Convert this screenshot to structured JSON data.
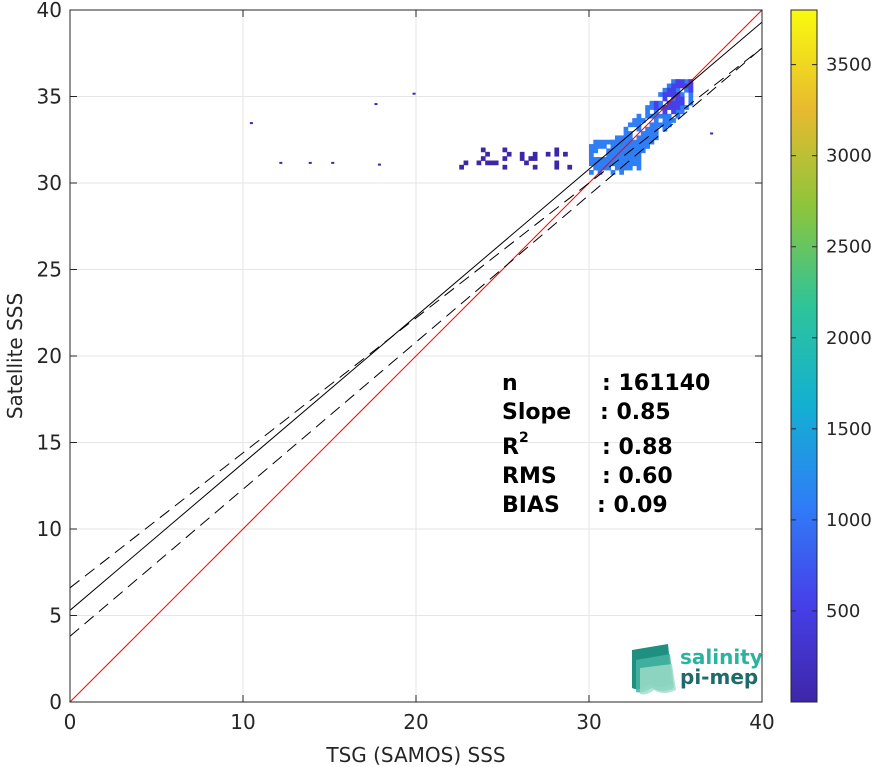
{
  "chart_data": {
    "type": "heatmap",
    "title": "",
    "xlabel": "TSG (SAMOS) SSS",
    "ylabel": "Satellite SSS",
    "xlim": [
      0,
      40
    ],
    "ylim": [
      0,
      40
    ],
    "xticks": [
      "0",
      "10",
      "20",
      "30",
      "40"
    ],
    "yticks": [
      "0",
      "5",
      "10",
      "15",
      "20",
      "25",
      "30",
      "35",
      "40"
    ],
    "grid": true,
    "colorbar": {
      "range": [
        0,
        3800
      ],
      "ticks": [
        "500",
        "1000",
        "1500",
        "2000",
        "2500",
        "3000",
        "3500"
      ],
      "colormap": "parula"
    },
    "lines": [
      {
        "name": "one-to-one",
        "slope": 1.0,
        "intercept": 0.0,
        "color": "#ff0000",
        "style": "solid"
      },
      {
        "name": "regression",
        "slope": 0.85,
        "intercept": 5.3,
        "color": "#000000",
        "style": "solid"
      },
      {
        "name": "regression-plus-std",
        "slope": 0.78,
        "intercept": 6.6,
        "color": "#000000",
        "style": "dashed"
      },
      {
        "name": "regression-minus-std",
        "slope": 0.85,
        "intercept": 3.8,
        "color": "#000000",
        "style": "dashed"
      }
    ],
    "density_clusters": [
      {
        "x": [
          30.0,
          33.0
        ],
        "y": [
          30.5,
          32.5
        ],
        "level": "high"
      },
      {
        "x": [
          31.0,
          36.0
        ],
        "y": [
          31.0,
          36.0
        ],
        "level": "high"
      },
      {
        "x": [
          22.0,
          30.0
        ],
        "y": [
          30.8,
          32.0
        ],
        "level": "low"
      },
      {
        "x": [
          33.5,
          36.0
        ],
        "y": [
          34.0,
          36.0
        ],
        "level": "medium"
      }
    ],
    "isolated_points": [
      {
        "x": 10.4,
        "y": 33.4
      },
      {
        "x": 17.6,
        "y": 34.5
      },
      {
        "x": 19.8,
        "y": 35.1
      },
      {
        "x": 12.1,
        "y": 31.1
      },
      {
        "x": 13.8,
        "y": 31.1
      },
      {
        "x": 15.1,
        "y": 31.1
      },
      {
        "x": 17.8,
        "y": 31.0
      },
      {
        "x": 37.0,
        "y": 32.8
      }
    ]
  },
  "stats": {
    "n_label": "n",
    "n_value": ": 161140",
    "slope_label": "Slope",
    "slope_value": ": 0.85",
    "r2_label": "R",
    "r2_sup": "2",
    "r2_value": ": 0.88",
    "rms_label": "RMS",
    "rms_value": ": 0.60",
    "bias_label": "BIAS",
    "bias_value": ": 0.09"
  },
  "logo": {
    "line1": "salinity",
    "line2": "pi-mep",
    "color1": "#2bb3a1",
    "color2": "#1f6b6b"
  },
  "colors": {
    "axis": "#262626",
    "grid": "#e6e6e6",
    "colormap_stops": [
      "#3e26a8",
      "#4640ea",
      "#2f7ef6",
      "#13b0d2",
      "#2ec49a",
      "#8cc53c",
      "#e8ba2f",
      "#f9fb0e"
    ]
  }
}
